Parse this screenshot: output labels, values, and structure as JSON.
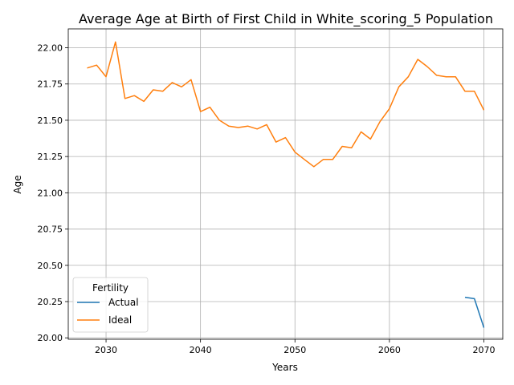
{
  "chart_data": {
    "type": "line",
    "title": "Average Age at Birth of First Child in White_scoring_5 Population",
    "xlabel": "Years",
    "ylabel": "Age",
    "xlim": [
      2026,
      2072
    ],
    "ylim": [
      19.99,
      22.13
    ],
    "x_ticks": [
      2030,
      2040,
      2050,
      2060,
      2070
    ],
    "y_ticks": [
      20.0,
      20.25,
      20.5,
      20.75,
      21.0,
      21.25,
      21.5,
      21.75,
      22.0
    ],
    "grid": true,
    "legend": {
      "title": "Fertility",
      "placement": "lower-left"
    },
    "series": [
      {
        "name": "Actual",
        "color": "#1f77b4",
        "x": [
          2068,
          2069,
          2070
        ],
        "values": [
          20.28,
          20.27,
          20.07
        ]
      },
      {
        "name": "Ideal",
        "color": "#ff7f0e",
        "x": [
          2028,
          2029,
          2030,
          2031,
          2032,
          2033,
          2034,
          2035,
          2036,
          2037,
          2038,
          2039,
          2040,
          2041,
          2042,
          2043,
          2044,
          2045,
          2046,
          2047,
          2048,
          2049,
          2050,
          2051,
          2052,
          2053,
          2054,
          2055,
          2056,
          2057,
          2058,
          2059,
          2060,
          2061,
          2062,
          2063,
          2064,
          2065,
          2066,
          2067,
          2068,
          2069,
          2070
        ],
        "values": [
          21.86,
          21.88,
          21.8,
          22.04,
          21.65,
          21.67,
          21.63,
          21.71,
          21.7,
          21.76,
          21.73,
          21.78,
          21.56,
          21.59,
          21.5,
          21.46,
          21.45,
          21.46,
          21.44,
          21.47,
          21.35,
          21.38,
          21.28,
          21.23,
          21.18,
          21.23,
          21.23,
          21.32,
          21.31,
          21.42,
          21.37,
          21.49,
          21.58,
          21.73,
          21.8,
          21.92,
          21.87,
          21.81,
          21.8,
          21.8,
          21.7,
          21.7,
          21.57
        ]
      }
    ]
  }
}
